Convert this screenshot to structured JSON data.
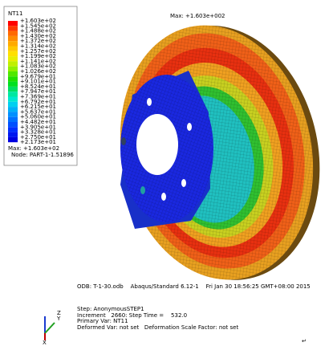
{
  "legend": {
    "title": "NT11",
    "labels": [
      "+1.603e+02",
      "+1.545e+02",
      "+1.488e+02",
      "+1.430e+02",
      "+1.372e+02",
      "+1.314e+02",
      "+1.257e+02",
      "+1.199e+02",
      "+1.141e+02",
      "+1.083e+02",
      "+1.026e+02",
      "+9.679e+01",
      "+9.101e+01",
      "+8.524e+01",
      "+7.947e+01",
      "+7.369e+01",
      "+6.792e+01",
      "+6.215e+01",
      "+5.637e+01",
      "+5.060e+01",
      "+4.482e+01",
      "+3.905e+01",
      "+3.328e+01",
      "+2.750e+01",
      "+2.173e+01"
    ],
    "max": "Max: +1.603e+02",
    "node": "Node: PART-1-1.51896"
  },
  "model": {
    "max_label": "Max: +1.603e+002"
  },
  "info": {
    "odb": "ODB: T-1-30.odb    Abaqus/Standard 6.12-1    Fri Jan 30 18:56:25 GMT+08:00 2015",
    "step": "Step: AnonymousSTEP1",
    "increment": "Increment   2660: Step Time =    532.0",
    "primary": "Primary Var: NT11",
    "deformed": "Deformed Var: not set   Deformation Scale Factor: not set"
  },
  "triad": {
    "z": "Z",
    "y": "Y",
    "x": "X"
  },
  "return_mark": "↵"
}
